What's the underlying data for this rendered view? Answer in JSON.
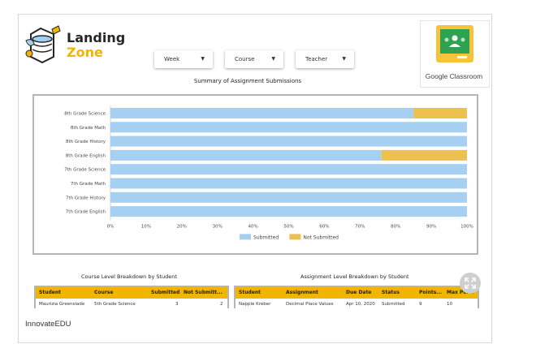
{
  "brand": {
    "logo_title": "Landing",
    "logo_subtitle": "Zone",
    "footer": "InnovateEDU"
  },
  "filters": [
    {
      "label": "Week"
    },
    {
      "label": "Course"
    },
    {
      "label": "Teacher"
    }
  ],
  "partner": {
    "name": "Google Classroom",
    "icon": "google-classroom-icon",
    "colors": {
      "green": "#2da24f",
      "yellow": "#f7c33d"
    }
  },
  "chart_data": {
    "type": "bar",
    "orientation": "horizontal",
    "stacked": true,
    "title": "Summary of Assignment Submissions",
    "categories": [
      "8th Grade Science",
      "8th Grade Math",
      "8th Grade History",
      "8th Grade English",
      "7th Grade Science",
      "7th Grade Math",
      "7th Grade History",
      "7th Grade English"
    ],
    "series": [
      {
        "name": "Submitted",
        "color": "#a6d0f2",
        "values": [
          85,
          100,
          100,
          76,
          100,
          100,
          100,
          100
        ]
      },
      {
        "name": "Not Submitted",
        "color": "#ecc14f",
        "values": [
          15,
          0,
          0,
          24,
          0,
          0,
          0,
          0
        ]
      }
    ],
    "x_ticks": [
      "0%",
      "10%",
      "20%",
      "30%",
      "40%",
      "50%",
      "60%",
      "70%",
      "80%",
      "90%",
      "100%"
    ],
    "xlim": [
      0,
      100
    ],
    "legend": "bottom",
    "grid": false
  },
  "course_table": {
    "title": "Course Level Breakdown by Student",
    "headers": [
      "Student",
      "Course",
      "Submitted",
      "Not Submitt..."
    ],
    "rows": [
      [
        "Maurizia Greenslade",
        "5th Grade Science",
        "3",
        "2"
      ]
    ]
  },
  "assignment_table": {
    "title": "Assignment Level Breakdown by Student",
    "headers": [
      "Student",
      "Assignment",
      "Due Date",
      "Status",
      "Points...",
      "Max Poi..."
    ],
    "rows": [
      [
        "Nappie Kreber",
        "Decimal Place Values",
        "Apr 10, 2020",
        "Submitted",
        "9",
        "10"
      ]
    ]
  },
  "controls": {
    "expand_icon": "expand-icon"
  }
}
